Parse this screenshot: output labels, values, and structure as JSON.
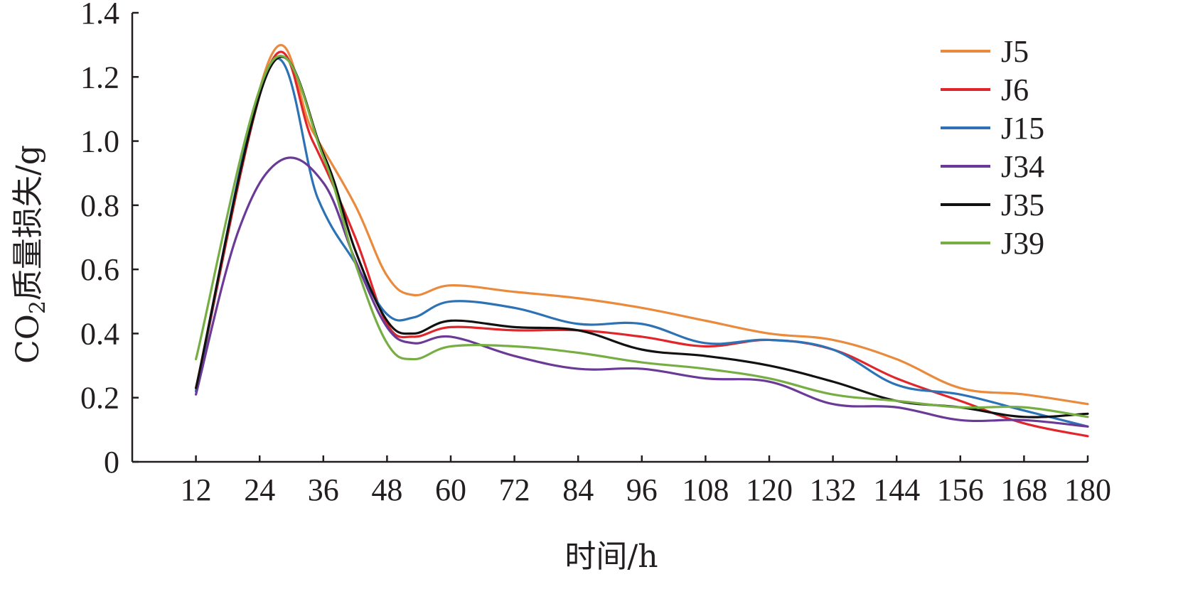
{
  "chart_data": {
    "type": "line",
    "xlabel": "时间/h",
    "ylabel_prefix": "CO",
    "ylabel_subscript": "2",
    "ylabel_suffix": "质量损失/g",
    "x_ticks": [
      "12",
      "24",
      "36",
      "48",
      "60",
      "72",
      "84",
      "96",
      "108",
      "120",
      "132",
      "144",
      "156",
      "168",
      "180"
    ],
    "y_ticks": [
      "0",
      "0.2",
      "0.4",
      "0.6",
      "0.8",
      "1.0",
      "1.2",
      "1.4"
    ],
    "xlim": [
      0,
      180
    ],
    "ylim": [
      0,
      1.4
    ],
    "grid": false,
    "legend_position": "top-right",
    "series": [
      {
        "name": "J5",
        "color": "#e98a3c",
        "points": [
          [
            12,
            0.23
          ],
          [
            26,
            1.26
          ],
          [
            34,
            1.03
          ],
          [
            42,
            0.8
          ],
          [
            48,
            0.58
          ],
          [
            53,
            0.52
          ],
          [
            60,
            0.55
          ],
          [
            72,
            0.53
          ],
          [
            84,
            0.51
          ],
          [
            96,
            0.48
          ],
          [
            108,
            0.44
          ],
          [
            120,
            0.4
          ],
          [
            132,
            0.38
          ],
          [
            144,
            0.32
          ],
          [
            156,
            0.23
          ],
          [
            168,
            0.21
          ],
          [
            180,
            0.18
          ]
        ]
      },
      {
        "name": "J6",
        "color": "#e0262a",
        "points": [
          [
            12,
            0.22
          ],
          [
            26,
            1.24
          ],
          [
            34,
            1.0
          ],
          [
            42,
            0.7
          ],
          [
            48,
            0.43
          ],
          [
            53,
            0.39
          ],
          [
            60,
            0.42
          ],
          [
            72,
            0.41
          ],
          [
            84,
            0.41
          ],
          [
            96,
            0.39
          ],
          [
            108,
            0.36
          ],
          [
            120,
            0.38
          ],
          [
            132,
            0.35
          ],
          [
            144,
            0.26
          ],
          [
            156,
            0.19
          ],
          [
            168,
            0.12
          ],
          [
            180,
            0.08
          ]
        ]
      },
      {
        "name": "J15",
        "color": "#2c72b5",
        "points": [
          [
            12,
            0.22
          ],
          [
            26,
            1.24
          ],
          [
            35,
            0.82
          ],
          [
            42,
            0.62
          ],
          [
            48,
            0.46
          ],
          [
            53,
            0.45
          ],
          [
            60,
            0.5
          ],
          [
            72,
            0.48
          ],
          [
            84,
            0.43
          ],
          [
            96,
            0.43
          ],
          [
            108,
            0.37
          ],
          [
            120,
            0.38
          ],
          [
            132,
            0.35
          ],
          [
            144,
            0.24
          ],
          [
            156,
            0.21
          ],
          [
            168,
            0.16
          ],
          [
            180,
            0.11
          ]
        ]
      },
      {
        "name": "J34",
        "color": "#6b3a96",
        "points": [
          [
            12,
            0.21
          ],
          [
            20,
            0.72
          ],
          [
            28,
            0.94
          ],
          [
            36,
            0.87
          ],
          [
            42,
            0.63
          ],
          [
            48,
            0.42
          ],
          [
            53,
            0.37
          ],
          [
            60,
            0.39
          ],
          [
            72,
            0.33
          ],
          [
            84,
            0.29
          ],
          [
            96,
            0.29
          ],
          [
            108,
            0.26
          ],
          [
            120,
            0.25
          ],
          [
            132,
            0.18
          ],
          [
            144,
            0.17
          ],
          [
            156,
            0.13
          ],
          [
            168,
            0.13
          ],
          [
            180,
            0.11
          ]
        ]
      },
      {
        "name": "J35",
        "color": "#111111",
        "points": [
          [
            12,
            0.23
          ],
          [
            26,
            1.23
          ],
          [
            36,
            0.96
          ],
          [
            42,
            0.66
          ],
          [
            48,
            0.44
          ],
          [
            53,
            0.4
          ],
          [
            60,
            0.44
          ],
          [
            72,
            0.42
          ],
          [
            84,
            0.41
          ],
          [
            96,
            0.35
          ],
          [
            108,
            0.33
          ],
          [
            120,
            0.3
          ],
          [
            132,
            0.25
          ],
          [
            144,
            0.19
          ],
          [
            156,
            0.17
          ],
          [
            168,
            0.14
          ],
          [
            180,
            0.15
          ]
        ]
      },
      {
        "name": "J39",
        "color": "#77ae44",
        "points": [
          [
            12,
            0.32
          ],
          [
            26,
            1.24
          ],
          [
            36,
            0.95
          ],
          [
            42,
            0.62
          ],
          [
            48,
            0.37
          ],
          [
            53,
            0.32
          ],
          [
            60,
            0.36
          ],
          [
            72,
            0.36
          ],
          [
            84,
            0.34
          ],
          [
            96,
            0.31
          ],
          [
            108,
            0.29
          ],
          [
            120,
            0.26
          ],
          [
            132,
            0.21
          ],
          [
            144,
            0.19
          ],
          [
            156,
            0.17
          ],
          [
            168,
            0.17
          ],
          [
            180,
            0.14
          ]
        ]
      }
    ]
  }
}
